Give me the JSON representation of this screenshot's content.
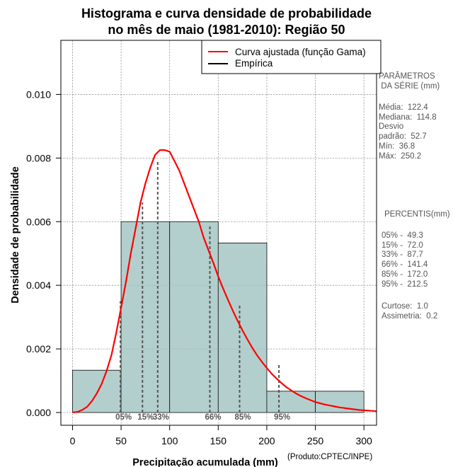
{
  "chart_data": {
    "type": "bar",
    "title_line1": "Histograma e curva densidade de probabilidade",
    "title_line2": "no mês de maio (1981-2010): Região 50",
    "xlabel": "Precipitação acumulada (mm)",
    "ylabel": "Densidade de probabilidade",
    "credit": "(Produto:CPTEC/INPE)",
    "xlim": [
      -12,
      313
    ],
    "ylim": [
      -0.0004,
      0.0117
    ],
    "xticks": [
      0,
      50,
      100,
      150,
      200,
      250,
      300
    ],
    "yticks": [
      0.0,
      0.002,
      0.004,
      0.006,
      0.008,
      0.01
    ],
    "ytick_labels": [
      "0.000",
      "0.002",
      "0.004",
      "0.006",
      "0.008",
      "0.010"
    ],
    "grid": true,
    "bins": [
      {
        "from": 0,
        "to": 50,
        "density": 0.00133
      },
      {
        "from": 50,
        "to": 100,
        "density": 0.006
      },
      {
        "from": 100,
        "to": 150,
        "density": 0.006
      },
      {
        "from": 150,
        "to": 200,
        "density": 0.00533
      },
      {
        "from": 200,
        "to": 250,
        "density": 0.00067
      },
      {
        "from": 250,
        "to": 300,
        "density": 0.00067
      }
    ],
    "gamma_curve": {
      "name": "Curva ajustada (função Gama)",
      "color": "#ff0000",
      "x": [
        0,
        5,
        10,
        15,
        20,
        25,
        30,
        35,
        40,
        45,
        50,
        55,
        60,
        65,
        70,
        75,
        80,
        85,
        90,
        95,
        100,
        105,
        110,
        115,
        120,
        125,
        130,
        135,
        140,
        145,
        150,
        155,
        160,
        165,
        170,
        175,
        180,
        185,
        190,
        195,
        200,
        205,
        210,
        215,
        220,
        225,
        230,
        235,
        240,
        245,
        250,
        255,
        260,
        265,
        270,
        275,
        280,
        285,
        290,
        295,
        300,
        305,
        310,
        313
      ],
      "y": [
        0.0,
        2e-05,
        8e-05,
        0.00018,
        0.00036,
        0.0006,
        0.0009,
        0.0013,
        0.0018,
        0.0025,
        0.0033,
        0.0041,
        0.005,
        0.0058,
        0.0066,
        0.0072,
        0.0077,
        0.0081,
        0.00825,
        0.00825,
        0.0082,
        0.0079,
        0.0076,
        0.0072,
        0.0068,
        0.0064,
        0.006,
        0.0055,
        0.0051,
        0.0047,
        0.00428,
        0.0039,
        0.00355,
        0.0032,
        0.00288,
        0.00258,
        0.0023,
        0.00204,
        0.0018,
        0.00159,
        0.0014,
        0.00122,
        0.00107,
        0.00093,
        0.0008,
        0.0007,
        0.0006,
        0.00052,
        0.00045,
        0.00039,
        0.00033,
        0.00029,
        0.00025,
        0.00022,
        0.00019,
        0.00016,
        0.00014,
        0.00012,
        0.0001,
        8e-05,
        7e-05,
        6e-05,
        5e-05,
        4e-05
      ]
    },
    "empirical_legend": {
      "name": "Empírica",
      "color": "#000000"
    },
    "percentile_markers": [
      {
        "label": "05%",
        "x": 49.3,
        "y": 0.0035
      },
      {
        "label": "15%",
        "x": 72.0,
        "y": 0.0066
      },
      {
        "label": "33%",
        "x": 87.7,
        "y": 0.0079
      },
      {
        "label": "66%",
        "x": 141.4,
        "y": 0.0059
      },
      {
        "label": "85%",
        "x": 172.0,
        "y": 0.0034
      },
      {
        "label": "95%",
        "x": 212.5,
        "y": 0.0015
      }
    ],
    "colors": {
      "bar_fill": "#b3cfcd",
      "bar_edge": "#000000",
      "grid": "#aaaaaa",
      "percentile_line": "#555555"
    }
  },
  "side_panel": {
    "stats_title": "PARÂMETROS\n DA SÉRIE (mm)",
    "stats": "Média:  122.4\nMediana:  114.8\nDesvio\npadrão:  52.7\nMín:  36.8\nMáx:  250.2",
    "percentiles_title": "PERCENTIS(mm)",
    "percentiles": "05% -  49.3\n15% -  72.0\n33% -  87.7\n66% -  141.4\n85% -  172.0\n95% -  212.5",
    "shape": "Curtose:  1.0\nAssimetria:  0.2"
  }
}
